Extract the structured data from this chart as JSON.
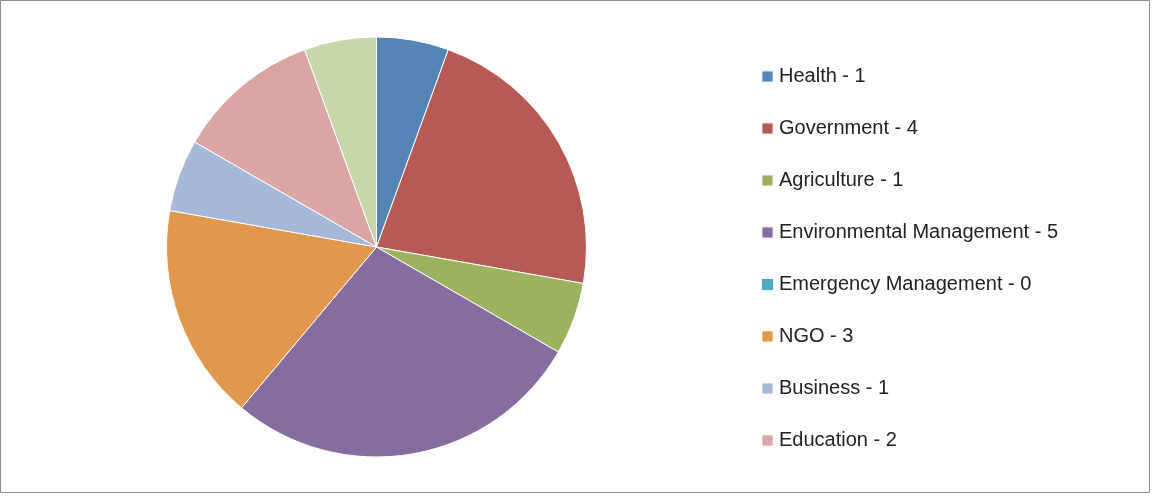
{
  "chart_data": {
    "type": "pie",
    "categories": [
      "Health - 1",
      "Government - 4",
      "Agriculture - 1",
      "Environmental Management - 5",
      "Emergency Management - 0",
      "NGO - 3",
      "Business - 1",
      "Education - 2",
      null
    ],
    "values": [
      5.556,
      22.222,
      5.556,
      27.778,
      0,
      16.667,
      5.556,
      11.111,
      5.556
    ],
    "colors": [
      "#5585b5",
      "#b85a54",
      "#9bb25f",
      "#866ca0",
      "#4bacc6",
      "#e2984c",
      "#a4b8d9",
      "#daa5a2",
      "#c7d7a8"
    ],
    "legend": "right"
  }
}
